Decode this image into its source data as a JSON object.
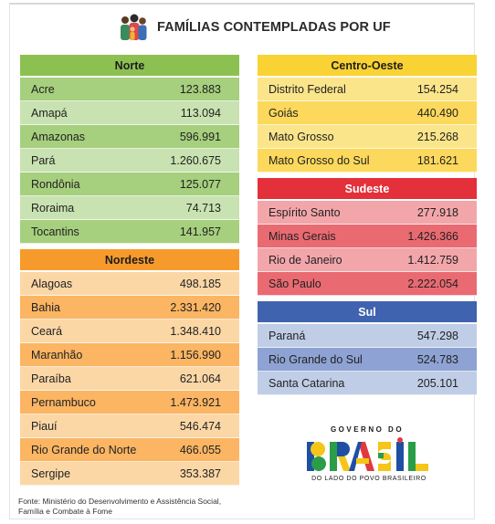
{
  "title": "FAMÍLIAS CONTEMPLADAS POR UF",
  "colors": {
    "norte_head": "#8cc152",
    "norte_a": "#a6cf7e",
    "norte_b": "#c9e2b1",
    "nordeste_head": "#f79a2c",
    "nordeste_a": "#fcd7a6",
    "nordeste_b": "#fbb563",
    "centro_head": "#f9d233",
    "centro_a": "#fbe58a",
    "centro_b": "#fcd95c",
    "sudeste_head": "#e3303a",
    "sudeste_a": "#f3a6aa",
    "sudeste_b": "#ea6a72",
    "sul_head": "#3f63ae",
    "sul_a": "#c0cde6",
    "sul_b": "#8ea3d3"
  },
  "regions": {
    "norte": {
      "name": "Norte",
      "rows": [
        {
          "uf": "Acre",
          "value": "123.883"
        },
        {
          "uf": "Amapá",
          "value": "113.094"
        },
        {
          "uf": "Amazonas",
          "value": "596.991"
        },
        {
          "uf": "Pará",
          "value": "1.260.675"
        },
        {
          "uf": "Rondônia",
          "value": "125.077"
        },
        {
          "uf": "Roraima",
          "value": "74.713"
        },
        {
          "uf": "Tocantins",
          "value": "141.957"
        }
      ]
    },
    "nordeste": {
      "name": "Nordeste",
      "rows": [
        {
          "uf": "Alagoas",
          "value": "498.185"
        },
        {
          "uf": "Bahia",
          "value": "2.331.420"
        },
        {
          "uf": "Ceará",
          "value": "1.348.410"
        },
        {
          "uf": "Maranhão",
          "value": "1.156.990"
        },
        {
          "uf": "Paraíba",
          "value": "621.064"
        },
        {
          "uf": "Pernambuco",
          "value": "1.473.921"
        },
        {
          "uf": "Piauí",
          "value": "546.474"
        },
        {
          "uf": "Rio Grande do Norte",
          "value": "466.055"
        },
        {
          "uf": "Sergipe",
          "value": "353.387"
        }
      ]
    },
    "centro": {
      "name": "Centro-Oeste",
      "rows": [
        {
          "uf": "Distrito Federal",
          "value": "154.254"
        },
        {
          "uf": "Goiás",
          "value": "440.490"
        },
        {
          "uf": "Mato Grosso",
          "value": "215.268"
        },
        {
          "uf": "Mato Grosso do Sul",
          "value": "181.621"
        }
      ]
    },
    "sudeste": {
      "name": "Sudeste",
      "rows": [
        {
          "uf": "Espírito Santo",
          "value": "277.918"
        },
        {
          "uf": "Minas Gerais",
          "value": "1.426.366"
        },
        {
          "uf": "Rio de Janeiro",
          "value": "1.412.759"
        },
        {
          "uf": "São Paulo",
          "value": "2.222.054"
        }
      ]
    },
    "sul": {
      "name": "Sul",
      "rows": [
        {
          "uf": "Paraná",
          "value": "547.298"
        },
        {
          "uf": "Rio Grande do Sul",
          "value": "524.783"
        },
        {
          "uf": "Santa Catarina",
          "value": "205.101"
        }
      ]
    }
  },
  "footer": "Fonte: Ministério do Desenvolvimento e Assistência Social, Família e Combate à Fome",
  "logo": {
    "top": "GOVERNO DO",
    "word": "BRASIL",
    "tagline": "DO LADO DO POVO BRASILEIRO"
  }
}
